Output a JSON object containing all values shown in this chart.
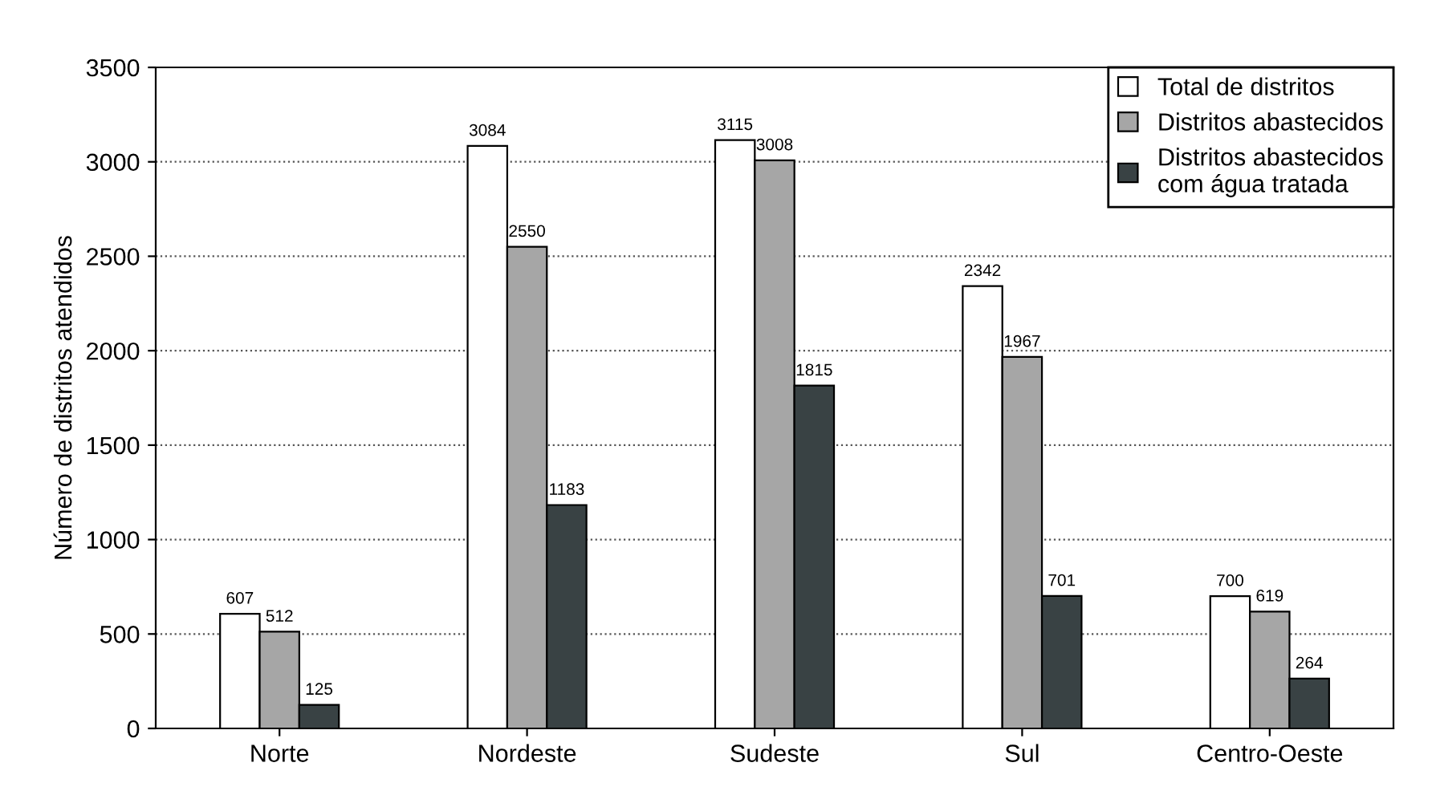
{
  "chart_data": {
    "type": "bar",
    "ylabel": "Número de distritos atendidos",
    "categories": [
      "Norte",
      "Nordeste",
      "Sudeste",
      "Sul",
      "Centro-Oeste"
    ],
    "series": [
      {
        "name": "Total de distritos",
        "color": "#ffffff",
        "values": [
          607,
          3084,
          3115,
          2342,
          700
        ]
      },
      {
        "name": "Distritos abastecidos",
        "color": "#a6a6a6",
        "values": [
          512,
          2550,
          3008,
          1967,
          619
        ]
      },
      {
        "name": "Distritos abastecidos\ncom água tratada",
        "color": "#394244",
        "values": [
          125,
          1183,
          1815,
          701,
          264
        ]
      }
    ],
    "ylim": [
      0,
      3500
    ],
    "yticks": [
      0,
      500,
      1000,
      1500,
      2000,
      2500,
      3000,
      3500
    ],
    "grid": "y",
    "legend": "top right",
    "data_labels": true
  }
}
